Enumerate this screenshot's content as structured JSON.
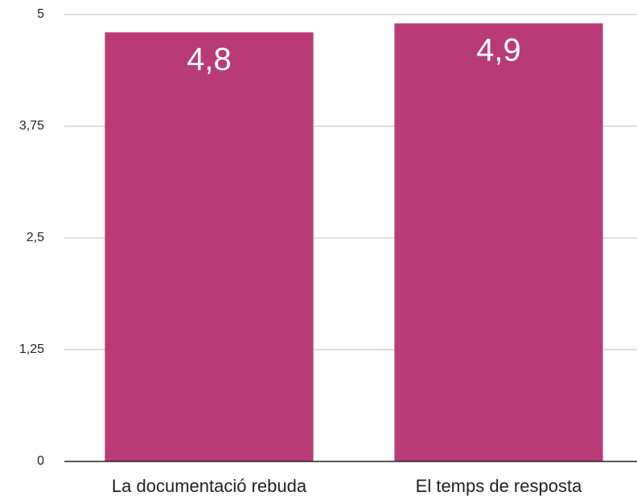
{
  "chart_data": {
    "type": "bar",
    "categories": [
      "La documentació rebuda",
      "El temps de resposta"
    ],
    "values": [
      4.8,
      4.9
    ],
    "value_labels": [
      "4,8",
      "4,9"
    ],
    "color": "#b83b78",
    "ylim": [
      0,
      5
    ],
    "yticks": [
      0,
      {
        "value": 1.25,
        "label": "1,25"
      },
      {
        "value": 2.5,
        "label": "2,5"
      },
      {
        "value": 3.75,
        "label": "3,75"
      },
      5
    ],
    "grid": true
  }
}
